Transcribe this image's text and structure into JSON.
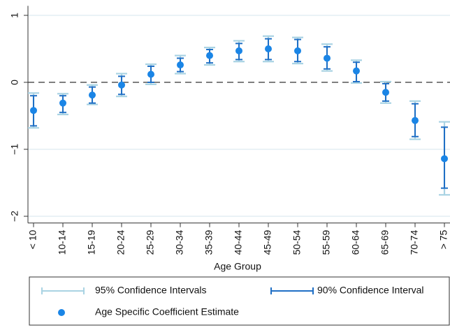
{
  "chart_data": {
    "type": "errorbar",
    "x_label": "Age Group",
    "categories": [
      "< 10",
      "10-14",
      "15-19",
      "20-24",
      "25-29",
      "30-34",
      "35-39",
      "40-44",
      "45-49",
      "50-54",
      "55-59",
      "60-64",
      "65-69",
      "70-74",
      "> 75"
    ],
    "series": [
      {
        "name": "95% Confidence Intervals",
        "color": "#a9d3e3",
        "lower": [
          -0.68,
          -0.48,
          -0.33,
          -0.21,
          -0.03,
          0.13,
          0.26,
          0.31,
          0.31,
          0.28,
          0.17,
          -0.01,
          -0.31,
          -0.85,
          -1.68
        ],
        "upper": [
          -0.16,
          -0.17,
          -0.04,
          0.13,
          0.27,
          0.4,
          0.52,
          0.62,
          0.69,
          0.67,
          0.57,
          0.33,
          0.01,
          -0.28,
          -0.59
        ]
      },
      {
        "name": "90% Confidence Interval",
        "color": "#1f6fc5",
        "lower": [
          -0.65,
          -0.45,
          -0.31,
          -0.18,
          0.0,
          0.16,
          0.29,
          0.34,
          0.34,
          0.31,
          0.2,
          0.01,
          -0.28,
          -0.81,
          -1.58
        ],
        "upper": [
          -0.2,
          -0.2,
          -0.07,
          0.09,
          0.24,
          0.36,
          0.49,
          0.58,
          0.65,
          0.64,
          0.53,
          0.3,
          -0.02,
          -0.32,
          -0.67
        ]
      },
      {
        "name": "Age Specific Coefficient Estimate",
        "color": "#1a85e6",
        "values": [
          -0.42,
          -0.31,
          -0.19,
          -0.04,
          0.12,
          0.26,
          0.4,
          0.47,
          0.5,
          0.47,
          0.36,
          0.17,
          -0.15,
          -0.57,
          -1.14
        ]
      }
    ],
    "ylim": [
      -2.1,
      1.1
    ],
    "yticks": [
      {
        "value": -2,
        "label": "−2"
      },
      {
        "value": -1,
        "label": "−1"
      },
      0,
      1
    ],
    "grid": true,
    "refline": 0,
    "legend": "bottom"
  }
}
